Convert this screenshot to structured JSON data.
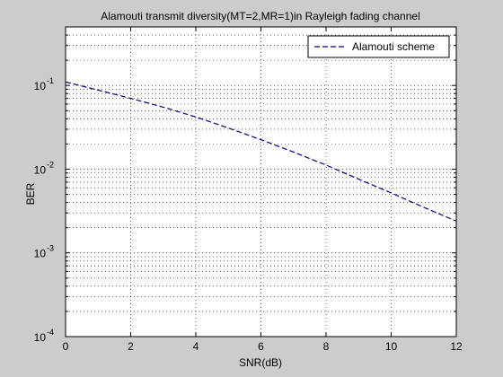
{
  "chart_data": {
    "type": "line",
    "title": "Alamouti transmit diversity(MT=2,MR=1)in Rayleigh fading channel",
    "xlabel": "SNR(dB)",
    "ylabel": "BER",
    "xlim": [
      0,
      12
    ],
    "ylim": [
      0.0001,
      0.5
    ],
    "yscale": "log",
    "grid": true,
    "grid_style": "dotted",
    "legend_position": "top-right",
    "xticks": [
      0,
      2,
      4,
      6,
      8,
      10,
      12
    ],
    "xtick_labels": [
      "0",
      "2",
      "4",
      "6",
      "8",
      "10",
      "12"
    ],
    "yticks": [
      {
        "value": 0.1,
        "base": "10",
        "exp": "-1"
      },
      {
        "value": 0.01,
        "base": "10",
        "exp": "-2"
      },
      {
        "value": 0.001,
        "base": "10",
        "exp": "-3"
      },
      {
        "value": 0.0001,
        "base": "10",
        "exp": "-4"
      }
    ],
    "series": [
      {
        "name": "Alamouti scheme",
        "color": "#00008b",
        "line_style": "dashed",
        "x": [
          0,
          1,
          2,
          3,
          4,
          5,
          6,
          7,
          8,
          9,
          10,
          11,
          12
        ],
        "y": [
          0.11,
          0.088,
          0.07,
          0.055,
          0.042,
          0.031,
          0.0225,
          0.016,
          0.0112,
          0.0076,
          0.0052,
          0.0035,
          0.0024
        ]
      }
    ]
  }
}
